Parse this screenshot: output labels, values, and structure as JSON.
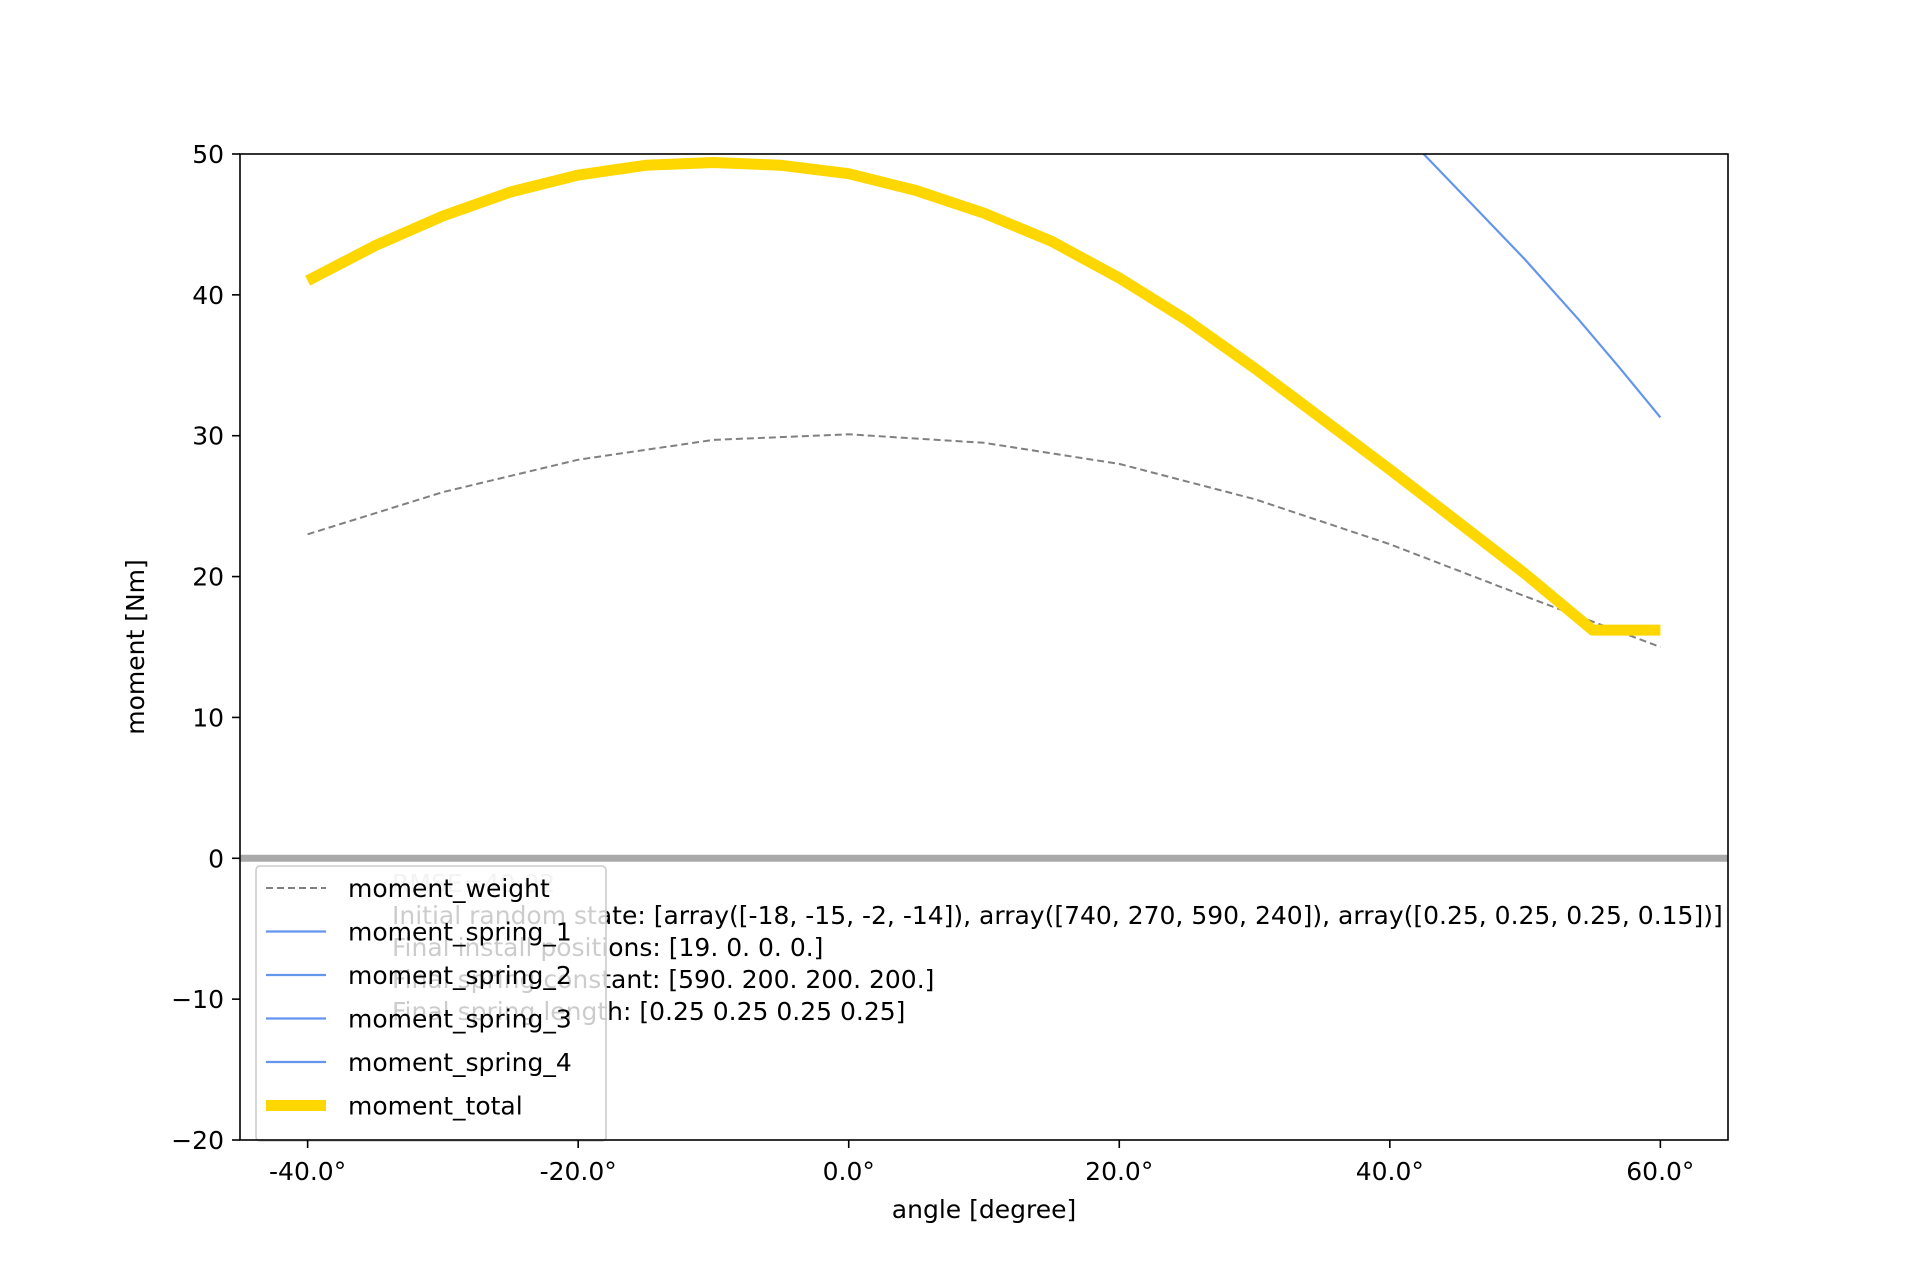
{
  "chart_data": {
    "type": "line",
    "xlabel": "angle [degree]",
    "ylabel": "moment [Nm]",
    "xlim": [
      -45,
      65
    ],
    "ylim": [
      -20,
      50
    ],
    "x_ticks": [
      -40,
      -20,
      0,
      20,
      40,
      60
    ],
    "x_tick_labels": [
      "-40.0°",
      "-20.0°",
      "0.0°",
      "20.0°",
      "40.0°",
      "60.0°"
    ],
    "y_ticks": [
      -20,
      -10,
      0,
      10,
      20,
      30,
      40,
      50
    ],
    "y_tick_labels": [
      "−20",
      "−10",
      "0",
      "10",
      "20",
      "30",
      "40",
      "50"
    ],
    "grid": false,
    "legend_position": "lower-left",
    "series": [
      {
        "name": "moment_weight",
        "color": "#808080",
        "style": "dashed",
        "x": [
          -40,
          -30,
          -20,
          -10,
          0,
          10,
          20,
          30,
          40,
          50,
          60
        ],
        "y": [
          23.0,
          26.0,
          28.3,
          29.7,
          30.1,
          29.5,
          28.0,
          25.5,
          22.3,
          18.6,
          15.0
        ]
      },
      {
        "name": "moment_spring_1",
        "color": "#6495ed",
        "style": "solid",
        "x": [
          42.5,
          46,
          50,
          54,
          57,
          60
        ],
        "y": [
          50.0,
          46.5,
          42.5,
          38.2,
          34.8,
          31.3
        ]
      },
      {
        "name": "moment_spring_2",
        "color": "#6495ed",
        "style": "solid",
        "x": [],
        "y": []
      },
      {
        "name": "moment_spring_3",
        "color": "#6495ed",
        "style": "solid",
        "x": [],
        "y": []
      },
      {
        "name": "moment_spring_4",
        "color": "#6495ed",
        "style": "solid",
        "x": [],
        "y": []
      },
      {
        "name": "moment_total",
        "color": "#ffd700",
        "style": "thick",
        "x": [
          -40,
          -35,
          -30,
          -25,
          -20,
          -15,
          -10,
          -5,
          0,
          5,
          10,
          15,
          20,
          25,
          30,
          35,
          40,
          45,
          50,
          55,
          60
        ],
        "y": [
          41.0,
          43.5,
          45.6,
          47.3,
          48.5,
          49.2,
          49.4,
          49.2,
          48.6,
          47.4,
          45.8,
          43.8,
          41.2,
          38.2,
          34.8,
          31.2,
          27.6,
          23.9,
          20.2,
          16.2,
          16.2
        ]
      }
    ],
    "reference_line": {
      "y": 0,
      "color": "#a9a9a9"
    },
    "annotations": [
      {
        "text": "RMSE=40.02",
        "faded": true
      },
      {
        "text": "Initial random state: [array([-18, -15,  -2, -14]), array([740, 270, 590, 240]), array([0.25, 0.25, 0.25, 0.15])]",
        "faded": false
      },
      {
        "text": "Final install positions: [19.  0.  0.  0.]",
        "faded": false
      },
      {
        "text": "Final spring constant: [590. 200. 200. 200.]",
        "faded": false
      },
      {
        "text": "Final spring length: [0.25 0.25 0.25 0.25]",
        "faded": false
      }
    ]
  }
}
